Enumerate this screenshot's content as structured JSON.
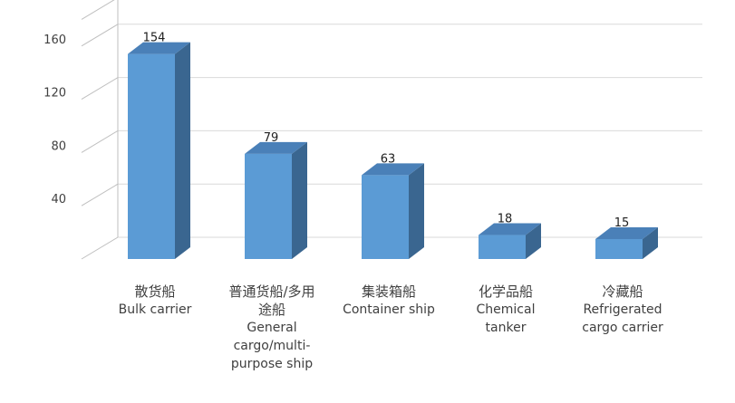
{
  "chart_data": {
    "type": "bar",
    "style": "3d-column",
    "categories": [
      {
        "zh": "散货船",
        "en": [
          "Bulk carrier"
        ]
      },
      {
        "zh": [
          "普通货船/多用",
          "途船"
        ],
        "en": [
          "General",
          "cargo/multi-",
          "purpose ship"
        ]
      },
      {
        "zh": "集装箱船",
        "en": [
          "Container ship"
        ]
      },
      {
        "zh": "化学品船",
        "en": [
          "Chemical",
          "tanker"
        ]
      },
      {
        "zh": "冷藏船",
        "en": [
          "Refrigerated",
          "cargo carrier"
        ]
      }
    ],
    "values": [
      154,
      79,
      63,
      18,
      15
    ],
    "yticks": [
      40,
      80,
      120,
      160
    ],
    "ylim": [
      0,
      180
    ],
    "grid": true,
    "bar_color": "#5b9bd5",
    "bar_top_color": "#4a80b8",
    "bar_side_color": "#3a6690",
    "grid_color": "#d9d9d9"
  }
}
